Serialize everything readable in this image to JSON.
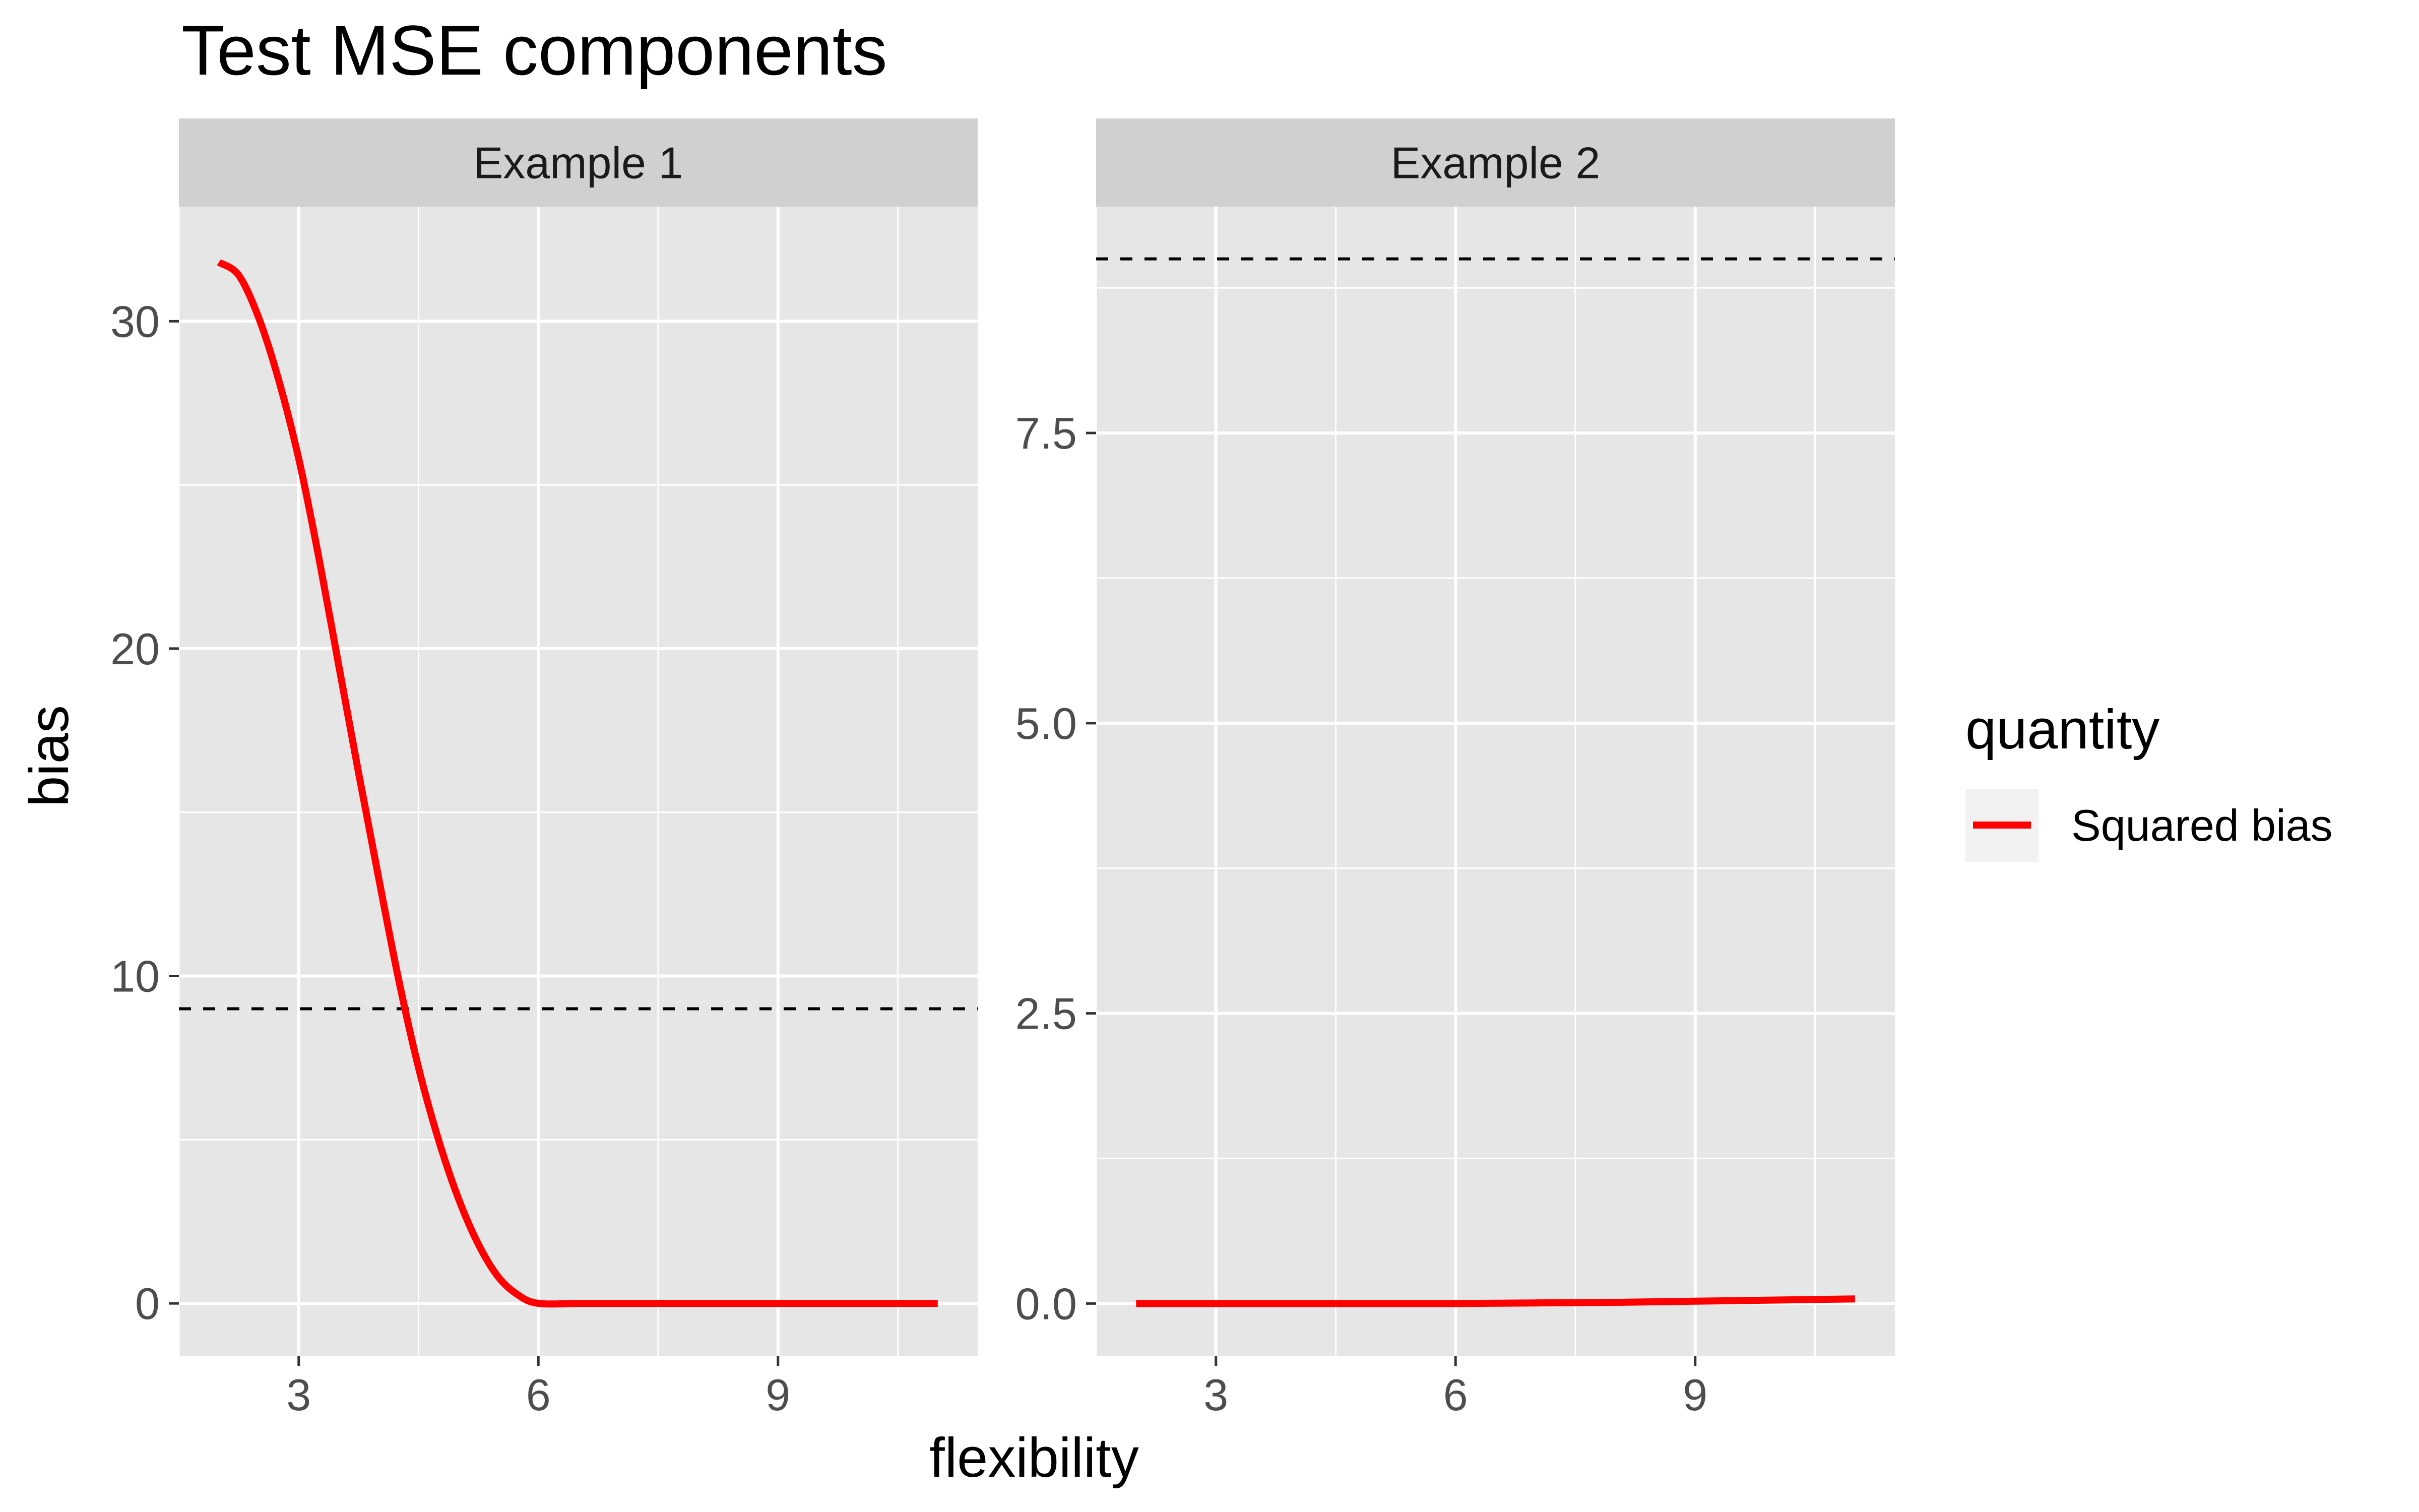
{
  "chart_data": {
    "type": "line",
    "title": "Test MSE components",
    "xlabel": "flexibility",
    "ylabel": "bias",
    "grid": true,
    "legend": {
      "title": "quantity",
      "placement": "right",
      "entries": [
        {
          "name": "Squared bias",
          "color": "#ff0000"
        }
      ]
    },
    "panels": [
      {
        "strip": "Example 1",
        "xlim": [
          1.5,
          11.5
        ],
        "ylim": [
          -1.6,
          33.5
        ],
        "x_ticks": [
          3,
          6,
          9
        ],
        "x_tick_labels": [
          "3",
          "6",
          "9"
        ],
        "y_ticks": [
          0,
          10,
          20,
          30
        ],
        "y_tick_labels": [
          "0",
          "10",
          "20",
          "30"
        ],
        "reference_line": {
          "y": 9,
          "style": "dashed",
          "color": "#000000"
        },
        "series": [
          {
            "name": "Squared bias",
            "color": "#ff0000",
            "x": [
              2.0,
              2.25,
              2.5,
              2.75,
              3.0,
              3.25,
              3.5,
              3.75,
              4.0,
              4.25,
              4.5,
              4.75,
              5.0,
              5.25,
              5.5,
              5.75,
              6.0,
              6.5,
              7.0,
              7.5,
              8.0,
              8.5,
              9.0,
              9.5,
              10.0,
              10.5,
              11.0
            ],
            "y": [
              31.8,
              31.4,
              30.1,
              28.2,
              25.8,
              22.8,
              19.5,
              16.2,
              13.0,
              9.9,
              7.2,
              5.0,
              3.2,
              1.8,
              0.8,
              0.25,
              0.0,
              0.0,
              0.0,
              0.0,
              0.0,
              0.0,
              0.0,
              0.0,
              0.0,
              0.0,
              0.0
            ]
          }
        ]
      },
      {
        "strip": "Example 2",
        "xlim": [
          1.5,
          11.5
        ],
        "ylim": [
          -0.45,
          9.45
        ],
        "x_ticks": [
          3,
          6,
          9
        ],
        "x_tick_labels": [
          "3",
          "6",
          "9"
        ],
        "y_ticks": [
          0,
          2.5,
          5,
          7.5
        ],
        "y_tick_labels": [
          "0.0",
          "2.5",
          "5.0",
          "7.5"
        ],
        "reference_line": {
          "y": 9,
          "style": "dashed",
          "color": "#000000"
        },
        "series": [
          {
            "name": "Squared bias",
            "color": "#ff0000",
            "x": [
              2.0,
              3.0,
              4.0,
              5.0,
              6.0,
              7.0,
              8.0,
              9.0,
              10.0,
              11.0
            ],
            "y": [
              0.0,
              0.0,
              0.0,
              0.0,
              0.0,
              0.005,
              0.01,
              0.02,
              0.03,
              0.04
            ]
          }
        ]
      }
    ]
  }
}
